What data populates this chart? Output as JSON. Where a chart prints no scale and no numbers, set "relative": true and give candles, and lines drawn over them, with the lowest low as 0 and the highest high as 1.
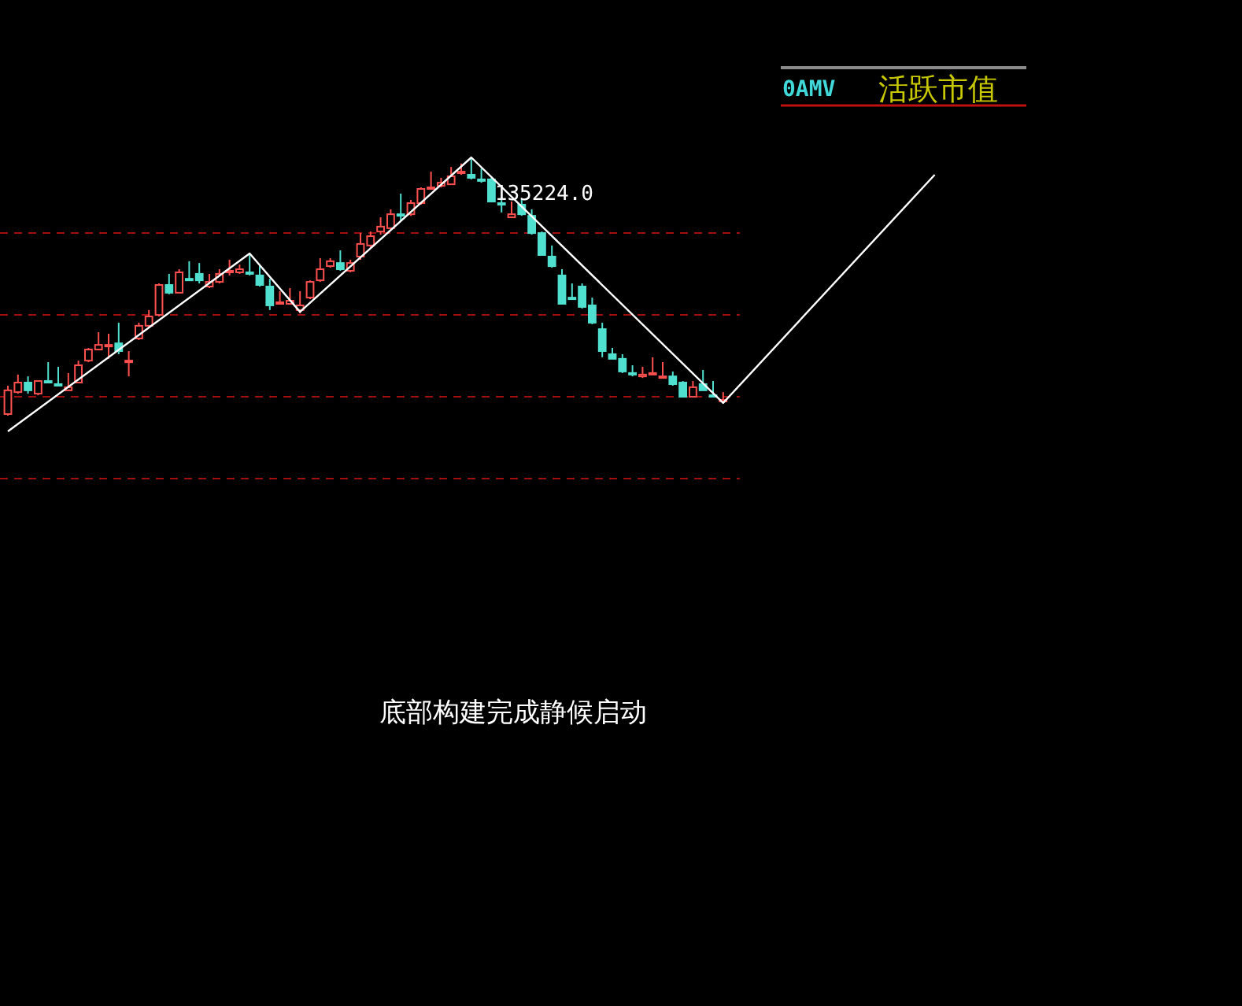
{
  "chart_data": {
    "type": "candlestick",
    "relative": true,
    "title": "0AMV",
    "subtitle": "活跃市值",
    "categories": [
      null,
      null,
      null,
      null,
      null,
      null,
      null,
      null,
      null,
      null,
      null,
      null,
      null,
      null,
      null,
      null,
      null,
      null,
      null,
      null,
      null,
      null,
      null,
      null,
      null,
      null,
      null,
      null,
      null,
      null,
      null,
      null,
      null,
      null,
      null,
      null,
      null,
      null,
      null,
      null,
      null,
      null,
      null,
      null,
      null,
      null,
      null,
      null,
      null,
      null,
      null,
      null,
      null,
      null,
      null,
      null,
      null,
      null,
      null,
      null,
      null,
      null,
      null,
      null,
      null,
      null,
      null,
      null,
      null,
      null,
      null,
      null,
      null,
      null,
      null,
      null,
      null,
      null,
      null,
      null,
      null,
      null,
      null,
      null,
      null,
      null,
      null,
      null,
      null,
      null,
      null,
      null,
      null
    ],
    "ohlc": [
      [
        0.006,
        0.116,
        0,
        0.098
      ],
      [
        0.091,
        0.159,
        0.085,
        0.128
      ],
      [
        0.128,
        0.152,
        0.085,
        0.098
      ],
      [
        0.085,
        0.134,
        0.079,
        0.134
      ],
      [
        0.134,
        0.207,
        0.128,
        0.134
      ],
      [
        0.122,
        0.189,
        0.116,
        0.122
      ],
      [
        0.098,
        0.165,
        0.098,
        0.11
      ],
      [
        0.128,
        0.213,
        0.128,
        0.195
      ],
      [
        0.213,
        0.262,
        0.207,
        0.256
      ],
      [
        0.256,
        0.323,
        0.256,
        0.274
      ],
      [
        0.274,
        0.317,
        0.22,
        0.274
      ],
      [
        0.28,
        0.36,
        0.238,
        0.25
      ],
      [
        0.213,
        0.25,
        0.152,
        0.213
      ],
      [
        0.299,
        0.36,
        0.293,
        0.348
      ],
      [
        0.348,
        0.409,
        0.341,
        0.384
      ],
      [
        0.39,
        0.512,
        0.384,
        0.506
      ],
      [
        0.506,
        0.549,
        0.47,
        0.476
      ],
      [
        0.476,
        0.567,
        0.476,
        0.555
      ],
      [
        0.53,
        0.598,
        0.53,
        0.53
      ],
      [
        0.549,
        0.591,
        0.512,
        0.524
      ],
      [
        0.5,
        0.549,
        0.494,
        0.518
      ],
      [
        0.518,
        0.567,
        0.512,
        0.549
      ],
      [
        0.561,
        0.604,
        0.543,
        0.561
      ],
      [
        0.555,
        0.585,
        0.549,
        0.567
      ],
      [
        0.555,
        0.622,
        0.543,
        0.555
      ],
      [
        0.543,
        0.579,
        0.5,
        0.506
      ],
      [
        0.5,
        0.53,
        0.409,
        0.427
      ],
      [
        0.439,
        0.482,
        0.433,
        0.439
      ],
      [
        0.433,
        0.494,
        0.433,
        0.445
      ],
      [
        0.409,
        0.482,
        0.396,
        0.427
      ],
      [
        0.457,
        0.524,
        0.451,
        0.518
      ],
      [
        0.524,
        0.61,
        0.518,
        0.567
      ],
      [
        0.579,
        0.61,
        0.573,
        0.598
      ],
      [
        0.591,
        0.64,
        0.561,
        0.567
      ],
      [
        0.561,
        0.604,
        0.555,
        0.591
      ],
      [
        0.616,
        0.707,
        0.604,
        0.665
      ],
      [
        0.659,
        0.713,
        0.652,
        0.695
      ],
      [
        0.713,
        0.768,
        0.701,
        0.732
      ],
      [
        0.726,
        0.799,
        0.72,
        0.78
      ],
      [
        0.78,
        0.86,
        0.756,
        0.78
      ],
      [
        0.78,
        0.835,
        0.774,
        0.823
      ],
      [
        0.823,
        0.884,
        0.817,
        0.878
      ],
      [
        0.884,
        0.945,
        0.878,
        0.884
      ],
      [
        0.89,
        0.921,
        0.884,
        0.902
      ],
      [
        0.896,
        0.963,
        0.896,
        0.927
      ],
      [
        0.945,
        0.976,
        0.933,
        0.945
      ],
      [
        0.933,
        1,
        0.915,
        0.921
      ],
      [
        0.915,
        0.957,
        0.902,
        0.915
      ],
      [
        0.915,
        0.921,
        0.829,
        0.829
      ],
      [
        0.823,
        0.848,
        0.787,
        0.823
      ],
      [
        0.768,
        0.829,
        0.768,
        0.78
      ],
      [
        0.817,
        0.841,
        0.774,
        0.78
      ],
      [
        0.774,
        0.799,
        0.701,
        0.707
      ],
      [
        0.707,
        0.713,
        0.622,
        0.622
      ],
      [
        0.616,
        0.659,
        0.573,
        0.579
      ],
      [
        0.543,
        0.567,
        0.433,
        0.433
      ],
      [
        0.457,
        0.512,
        0.451,
        0.457
      ],
      [
        0.5,
        0.512,
        0.415,
        0.421
      ],
      [
        0.427,
        0.457,
        0.354,
        0.36
      ],
      [
        0.335,
        0.36,
        0.226,
        0.25
      ],
      [
        0.238,
        0.262,
        0.22,
        0.22
      ],
      [
        0.22,
        0.238,
        0.165,
        0.171
      ],
      [
        0.165,
        0.195,
        0.152,
        0.165
      ],
      [
        0.152,
        0.189,
        0.146,
        0.159
      ],
      [
        0.165,
        0.226,
        0.159,
        0.165
      ],
      [
        0.152,
        0.207,
        0.146,
        0.152
      ],
      [
        0.152,
        0.171,
        0.116,
        0.122
      ],
      [
        0.128,
        0.134,
        0.073,
        0.073
      ],
      [
        0.073,
        0.134,
        0.073,
        0.11
      ],
      [
        0.122,
        0.177,
        0.098,
        0.098
      ],
      [
        0.079,
        0.134,
        0.073,
        0.079
      ],
      [
        0.061,
        0.091,
        0.055,
        0.061
      ],
      null,
      null,
      null,
      null,
      null,
      null,
      null,
      null,
      null,
      null,
      null,
      null,
      null,
      null,
      null,
      null,
      null,
      null,
      null,
      null,
      null
    ],
    "colors": [
      "#ff5050",
      "#ff5050",
      "#50e0d0",
      "#ff5050",
      "#50e0d0",
      "#50e0d0",
      "#ff5050",
      "#ff5050",
      "#ff5050",
      "#ff5050",
      "#ff5050",
      "#50e0d0",
      "#ff5050",
      "#ff5050",
      "#ff5050",
      "#ff5050",
      "#50e0d0",
      "#ff5050",
      "#50e0d0",
      "#50e0d0",
      "#ff5050",
      "#ff5050",
      "#ff5050",
      "#ff5050",
      "#50e0d0",
      "#50e0d0",
      "#50e0d0",
      "#ff5050",
      "#ff5050",
      "#ff5050",
      "#ff5050",
      "#ff5050",
      "#ff5050",
      "#50e0d0",
      "#ff5050",
      "#ff5050",
      "#ff5050",
      "#ff5050",
      "#ff5050",
      "#50e0d0",
      "#ff5050",
      "#ff5050",
      "#ff5050",
      "#ff5050",
      "#ff5050",
      "#ff5050",
      "#50e0d0",
      "#50e0d0",
      "#50e0d0",
      "#50e0d0",
      "#ff5050",
      "#50e0d0",
      "#50e0d0",
      "#50e0d0",
      "#50e0d0",
      "#50e0d0",
      "#50e0d0",
      "#50e0d0",
      "#50e0d0",
      "#50e0d0",
      "#50e0d0",
      "#50e0d0",
      "#50e0d0",
      "#ff5050",
      "#ff5050",
      "#ff5050",
      "#50e0d0",
      "#50e0d0",
      "#ff5050",
      "#50e0d0",
      "#50e0d0",
      "#ff5050",
      null,
      null,
      null,
      null,
      null,
      null,
      null,
      null,
      null,
      null,
      null,
      null,
      null,
      null,
      null,
      null,
      null,
      null,
      null,
      null,
      null
    ],
    "series": [
      {
        "type": "line",
        "color": "#ffffff",
        "values": [
          -0.061,
          null,
          null,
          null,
          null,
          null,
          null,
          null,
          null,
          null,
          null,
          null,
          null,
          null,
          null,
          null,
          null,
          null,
          null,
          null,
          null,
          null,
          null,
          null,
          0.628,
          null,
          null,
          null,
          null,
          0.402,
          null,
          null,
          null,
          null,
          null,
          null,
          null,
          null,
          null,
          null,
          null,
          null,
          null,
          null,
          null,
          null,
          1,
          null,
          null,
          null,
          null,
          null,
          null,
          null,
          null,
          null,
          null,
          null,
          null,
          null,
          null,
          null,
          null,
          null,
          null,
          null,
          null,
          null,
          null,
          null,
          null,
          0.049,
          null,
          null,
          null,
          null,
          null,
          null,
          null,
          null,
          null,
          null,
          null,
          null,
          null,
          null,
          null,
          null,
          null,
          null,
          null,
          null,
          0.933
        ]
      }
    ],
    "ref_lines": [
      {
        "axis": "y",
        "value": 0.707,
        "color": "#a01010",
        "line_style": "dashed"
      },
      {
        "axis": "y",
        "value": 0.39,
        "color": "#a01010",
        "line_style": "dashed"
      },
      {
        "axis": "y",
        "value": 0.073,
        "color": "#a01010",
        "line_style": "dashed"
      },
      {
        "axis": "y",
        "value": -0.244,
        "color": "#a01010",
        "line_style": "dashed"
      }
    ],
    "annotations": [
      "135224.0",
      "底部构建完成静候启动"
    ]
  }
}
